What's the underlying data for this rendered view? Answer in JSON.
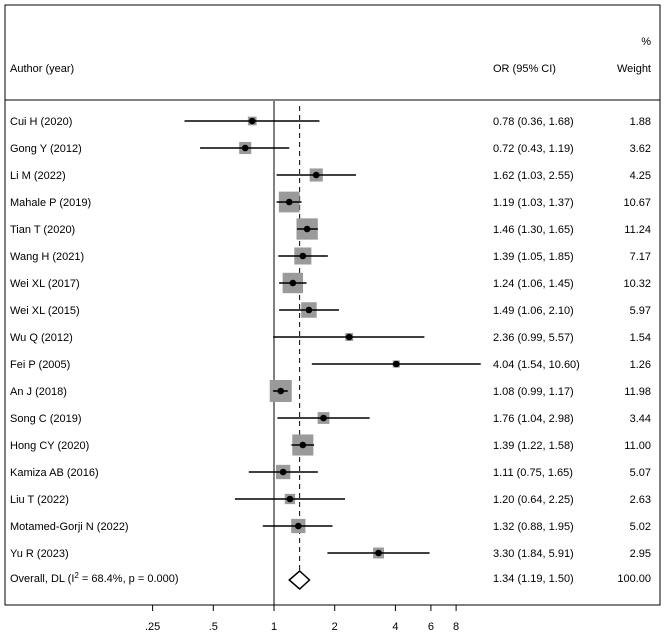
{
  "chart_data": {
    "type": "forest",
    "header": {
      "author": "Author (year)",
      "or_ci": "OR (95% CI)",
      "weight_top": "%",
      "weight_bottom": "Weight"
    },
    "x_scale": "log",
    "xlim": [
      0.25,
      8
    ],
    "null_value": 1,
    "xticks": [
      {
        "value": 0.25,
        "label": ".25"
      },
      {
        "value": 0.5,
        "label": ".5"
      },
      {
        "value": 1,
        "label": "1"
      },
      {
        "value": 2,
        "label": "2"
      },
      {
        "value": 4,
        "label": "4"
      },
      {
        "value": 6,
        "label": "6"
      },
      {
        "value": 8,
        "label": "8"
      }
    ],
    "studies": [
      {
        "author": "Cui H (2020)",
        "or": 0.78,
        "lo": 0.36,
        "hi": 1.68,
        "or_text": "0.78 (0.36, 1.68)",
        "weight": 1.88,
        "weight_text": "1.88"
      },
      {
        "author": "Gong Y (2012)",
        "or": 0.72,
        "lo": 0.43,
        "hi": 1.19,
        "or_text": "0.72 (0.43, 1.19)",
        "weight": 3.62,
        "weight_text": "3.62"
      },
      {
        "author": "Li M (2022)",
        "or": 1.62,
        "lo": 1.03,
        "hi": 2.55,
        "or_text": "1.62 (1.03, 2.55)",
        "weight": 4.25,
        "weight_text": "4.25"
      },
      {
        "author": "Mahale P (2019)",
        "or": 1.19,
        "lo": 1.03,
        "hi": 1.37,
        "or_text": "1.19 (1.03, 1.37)",
        "weight": 10.67,
        "weight_text": "10.67"
      },
      {
        "author": "Tian T (2020)",
        "or": 1.46,
        "lo": 1.3,
        "hi": 1.65,
        "or_text": "1.46 (1.30, 1.65)",
        "weight": 11.24,
        "weight_text": "11.24"
      },
      {
        "author": "Wang H (2021)",
        "or": 1.39,
        "lo": 1.05,
        "hi": 1.85,
        "or_text": "1.39 (1.05, 1.85)",
        "weight": 7.17,
        "weight_text": "7.17"
      },
      {
        "author": "Wei XL (2017)",
        "or": 1.24,
        "lo": 1.06,
        "hi": 1.45,
        "or_text": "1.24 (1.06, 1.45)",
        "weight": 10.32,
        "weight_text": "10.32"
      },
      {
        "author": "Wei XL (2015)",
        "or": 1.49,
        "lo": 1.06,
        "hi": 2.1,
        "or_text": "1.49 (1.06, 2.10)",
        "weight": 5.97,
        "weight_text": "5.97"
      },
      {
        "author": "Wu Q (2012)",
        "or": 2.36,
        "lo": 0.99,
        "hi": 5.57,
        "or_text": "2.36 (0.99, 5.57)",
        "weight": 1.54,
        "weight_text": "1.54"
      },
      {
        "author": "Fei P (2005)",
        "or": 4.04,
        "lo": 1.54,
        "hi": 10.6,
        "or_text": "4.04 (1.54, 10.60)",
        "weight": 1.26,
        "weight_text": "1.26"
      },
      {
        "author": "An J (2018)",
        "or": 1.08,
        "lo": 0.99,
        "hi": 1.17,
        "or_text": "1.08 (0.99, 1.17)",
        "weight": 11.98,
        "weight_text": "11.98"
      },
      {
        "author": "Song C (2019)",
        "or": 1.76,
        "lo": 1.04,
        "hi": 2.98,
        "or_text": "1.76 (1.04, 2.98)",
        "weight": 3.44,
        "weight_text": "3.44"
      },
      {
        "author": "Hong CY (2020)",
        "or": 1.39,
        "lo": 1.22,
        "hi": 1.58,
        "or_text": "1.39 (1.22, 1.58)",
        "weight": 11.0,
        "weight_text": "11.00"
      },
      {
        "author": "Kamiza AB (2016)",
        "or": 1.11,
        "lo": 0.75,
        "hi": 1.65,
        "or_text": "1.11 (0.75, 1.65)",
        "weight": 5.07,
        "weight_text": "5.07"
      },
      {
        "author": "Liu T (2022)",
        "or": 1.2,
        "lo": 0.64,
        "hi": 2.25,
        "or_text": "1.20 (0.64, 2.25)",
        "weight": 2.63,
        "weight_text": "2.63"
      },
      {
        "author": "Motamed-Gorji N (2022)",
        "or": 1.32,
        "lo": 0.88,
        "hi": 1.95,
        "or_text": "1.32 (0.88, 1.95)",
        "weight": 5.02,
        "weight_text": "5.02"
      },
      {
        "author": "Yu R (2023)",
        "or": 3.3,
        "lo": 1.84,
        "hi": 5.91,
        "or_text": "3.30 (1.84, 5.91)",
        "weight": 2.95,
        "weight_text": "2.95"
      }
    ],
    "overall": {
      "label_prefix": "Overall, DL (I",
      "label_sup": "2",
      "label_suffix": " = 68.4%, p = 0.000)",
      "or": 1.34,
      "lo": 1.19,
      "hi": 1.5,
      "or_text": "1.34 (1.19, 1.50)",
      "weight_text": "100.00"
    }
  }
}
